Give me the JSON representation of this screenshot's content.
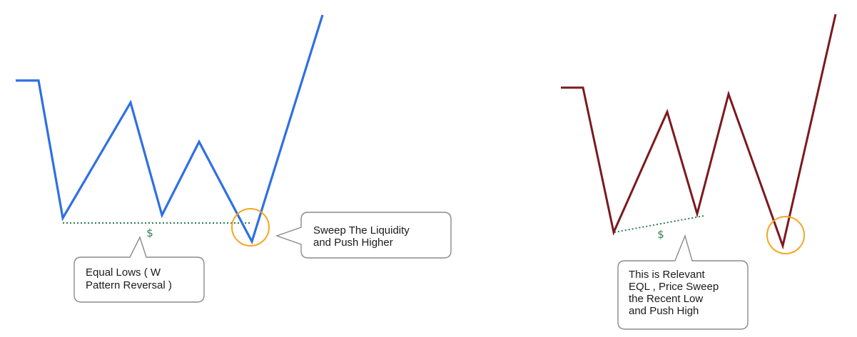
{
  "left_diagram": {
    "line_color": "#2f6fe4",
    "liquidity_color": "#2e7d4f",
    "sweep_circle_color": "#f5a623",
    "liquidity_symbol": "$",
    "callout_equal_lows": [
      "Equal Lows ( W",
      "Pattern Reversal  )"
    ],
    "callout_sweep": [
      "Sweep The Liquidity",
      "and Push Higher"
    ]
  },
  "right_diagram": {
    "line_color": "#7b1a1f",
    "liquidity_color": "#2e7d4f",
    "sweep_circle_color": "#f5a623",
    "liquidity_symbol": "$",
    "callout_relevant": [
      "This is Relevant",
      "EQL , Price Sweep",
      "the Recent Low",
      "and Push High"
    ]
  },
  "callout_style": {
    "fill": "#ffffff",
    "stroke": "#8a8a8a"
  }
}
